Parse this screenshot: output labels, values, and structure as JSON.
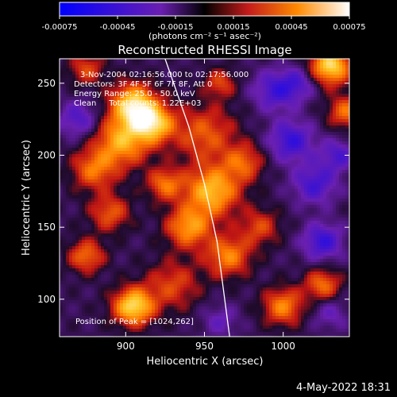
{
  "chart_data": {
    "type": "heatmap",
    "title": "Reconstructed RHESSI Image",
    "xlabel": "Heliocentric X (arcsec)",
    "ylabel": "Heliocentric Y (arcsec)",
    "xlim": [
      858,
      1042
    ],
    "ylim": [
      74,
      267
    ],
    "x_ticks": [
      900,
      950,
      1000
    ],
    "y_ticks": [
      100,
      150,
      200,
      250
    ],
    "colorbar": {
      "range": [
        -0.00075,
        0.00075
      ],
      "ticks": [
        "-0.00075",
        "-0.00045",
        "-0.00015",
        "0.00015",
        "0.00045",
        "0.00075"
      ],
      "unit_label": "(photons cm⁻² s⁻¹ asec⁻²)"
    },
    "annotations": [
      "3-Nov-2004 02:16:56.000 to 02:17:56.000",
      "Detectors: 3F 4F 5F 6F 7F 8F, Att 0",
      "Energy Range: 25.0 - 50.0 keV",
      "Clean     Total counts: 1.22E+03"
    ],
    "peak_label": "Position of Peak = [1024,262]",
    "limb_curve": [
      [
        925,
        267
      ],
      [
        940,
        220
      ],
      [
        950,
        180
      ],
      [
        958,
        140
      ],
      [
        966,
        74
      ]
    ],
    "blobs": [
      [
        905,
        235,
        10,
        0.0007
      ],
      [
        898,
        210,
        12,
        0.00055
      ],
      [
        918,
        222,
        9,
        0.0006
      ],
      [
        880,
        190,
        10,
        0.0004
      ],
      [
        950,
        215,
        14,
        0.00035
      ],
      [
        955,
        175,
        12,
        0.0006
      ],
      [
        940,
        150,
        10,
        0.0005
      ],
      [
        965,
        130,
        10,
        0.00045
      ],
      [
        930,
        110,
        12,
        0.0003
      ],
      [
        890,
        160,
        9,
        0.00035
      ],
      [
        975,
        195,
        9,
        0.00035
      ],
      [
        985,
        150,
        9,
        0.0003
      ],
      [
        1030,
        262,
        9,
        0.0007
      ],
      [
        1040,
        230,
        8,
        0.0004
      ],
      [
        1000,
        95,
        9,
        0.00045
      ],
      [
        1025,
        110,
        8,
        0.0004
      ],
      [
        905,
        95,
        9,
        0.0007
      ],
      [
        875,
        260,
        8,
        0.0003
      ],
      [
        925,
        180,
        8,
        0.0004
      ],
      [
        960,
        250,
        7,
        0.0003
      ],
      [
        875,
        130,
        8,
        0.0004
      ],
      [
        1005,
        210,
        10,
        -0.0004
      ],
      [
        1020,
        180,
        10,
        -0.00035
      ],
      [
        1025,
        140,
        9,
        -0.0004
      ],
      [
        995,
        245,
        10,
        -0.00035
      ],
      [
        870,
        225,
        9,
        -0.0003
      ],
      [
        1010,
        250,
        8,
        -0.00025
      ],
      [
        1035,
        200,
        8,
        -0.0003
      ],
      [
        960,
        85,
        8,
        -0.0002
      ],
      [
        1030,
        90,
        8,
        -0.0002
      ]
    ]
  },
  "footer": {
    "date": "4-May-2022 18:31"
  }
}
